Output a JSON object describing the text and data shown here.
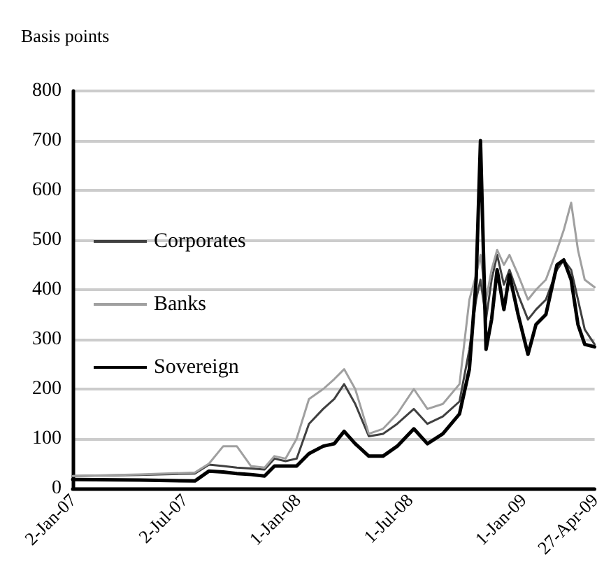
{
  "chart_data": {
    "type": "line",
    "ylabel": "Basis points",
    "x": [
      "2007-01-02",
      "2007-04-20",
      "2007-07-19",
      "2007-08-11",
      "2007-09-03",
      "2007-09-25",
      "2007-10-18",
      "2007-11-09",
      "2007-11-25",
      "2007-12-13",
      "2007-12-31",
      "2008-01-20",
      "2008-02-12",
      "2008-03-01",
      "2008-03-17",
      "2008-04-04",
      "2008-04-26",
      "2008-05-19",
      "2008-06-11",
      "2008-07-08",
      "2008-07-30",
      "2008-08-24",
      "2008-09-20",
      "2008-10-06",
      "2008-10-17",
      "2008-10-24",
      "2008-11-02",
      "2008-11-11",
      "2008-11-20",
      "2008-12-01",
      "2008-12-10",
      "2008-12-24",
      "2009-01-09",
      "2009-01-22",
      "2009-02-07",
      "2009-02-25",
      "2009-03-08",
      "2009-03-20",
      "2009-03-31",
      "2009-04-11",
      "2009-04-27"
    ],
    "series": [
      {
        "name": "Corporates",
        "color": "#404040",
        "values": [
          25,
          27,
          30,
          48,
          45,
          42,
          40,
          38,
          60,
          55,
          60,
          130,
          160,
          180,
          210,
          170,
          105,
          110,
          130,
          160,
          130,
          145,
          175,
          280,
          380,
          420,
          340,
          420,
          470,
          410,
          440,
          390,
          340,
          360,
          380,
          440,
          460,
          440,
          380,
          320,
          290
        ]
      },
      {
        "name": "Banks",
        "color": "#a0a0a0",
        "values": [
          25,
          28,
          32,
          50,
          85,
          85,
          45,
          42,
          65,
          60,
          100,
          180,
          200,
          220,
          240,
          200,
          110,
          120,
          150,
          200,
          160,
          170,
          210,
          380,
          430,
          470,
          380,
          440,
          480,
          450,
          470,
          430,
          380,
          400,
          420,
          480,
          520,
          575,
          480,
          420,
          405
        ]
      },
      {
        "name": "Sovereign",
        "color": "#000000",
        "values": [
          18,
          17,
          15,
          35,
          33,
          30,
          28,
          25,
          45,
          45,
          45,
          70,
          85,
          90,
          115,
          90,
          65,
          65,
          85,
          120,
          90,
          110,
          150,
          240,
          420,
          700,
          280,
          340,
          440,
          360,
          430,
          350,
          270,
          330,
          350,
          450,
          460,
          420,
          330,
          290,
          285
        ]
      }
    ],
    "xlim": [
      "2007-01-02",
      "2009-04-27"
    ],
    "xticks": [
      {
        "value": "2007-01-02",
        "label": "2-Jan-07"
      },
      {
        "value": "2007-07-02",
        "label": "2-Jul-07"
      },
      {
        "value": "2008-01-01",
        "label": "1-Jan-08"
      },
      {
        "value": "2008-07-01",
        "label": "1-Jul-08"
      },
      {
        "value": "2009-01-01",
        "label": "1-Jan-09"
      },
      {
        "value": "2009-04-27",
        "label": "27-Apr-09"
      }
    ],
    "ylim": [
      0,
      800
    ],
    "yticks": [
      0,
      100,
      200,
      300,
      400,
      500,
      600,
      700,
      800
    ],
    "grid": "y",
    "legend": "left",
    "marker": "none",
    "line_style": "solid"
  }
}
